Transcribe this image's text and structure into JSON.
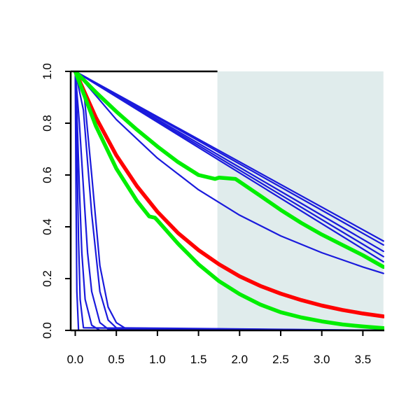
{
  "chart_data": {
    "type": "line",
    "title": "",
    "xlabel": "",
    "ylabel": "",
    "xlim": [
      -0.05,
      3.75
    ],
    "ylim": [
      0,
      1
    ],
    "x_ticks": [
      "0.0",
      "0.5",
      "1.0",
      "1.5",
      "2.0",
      "2.5",
      "3.0",
      "3.5"
    ],
    "y_ticks": [
      "0.0",
      "0.2",
      "0.4",
      "0.6",
      "0.8",
      "1.0"
    ],
    "grid": false,
    "shaded_region": {
      "x_from": 1.73,
      "x_to": 3.75,
      "color": "#e0ecec"
    },
    "series_colors": {
      "blue": "#1a1adc",
      "red": "#ff0000",
      "green": "#00ee00"
    },
    "series": [
      {
        "color": "blue",
        "x": [
          0,
          3.75
        ],
        "y": [
          1.0,
          0.345
        ]
      },
      {
        "color": "blue",
        "x": [
          0,
          3.75
        ],
        "y": [
          1.0,
          0.33
        ]
      },
      {
        "color": "blue",
        "x": [
          0,
          3.75
        ],
        "y": [
          1.0,
          0.305
        ]
      },
      {
        "color": "blue",
        "x": [
          0,
          3.75
        ],
        "y": [
          1.0,
          0.285
        ]
      },
      {
        "color": "blue",
        "x": [
          0,
          3.75
        ],
        "y": [
          1.0,
          0.265
        ]
      },
      {
        "color": "blue",
        "x": [
          0,
          0.5,
          1.0,
          1.5,
          2.0,
          2.5,
          3.0,
          3.5,
          3.75
        ],
        "y": [
          1.0,
          0.814,
          0.665,
          0.543,
          0.445,
          0.365,
          0.3,
          0.245,
          0.22
        ]
      },
      {
        "color": "blue",
        "x": [
          0,
          0.1,
          0.2,
          0.3,
          0.4,
          0.5,
          0.6,
          0.7,
          3.75
        ],
        "y": [
          1.0,
          0.94,
          0.6,
          0.25,
          0.09,
          0.03,
          0.01,
          0.0,
          0.0
        ]
      },
      {
        "color": "blue",
        "x": [
          0,
          0.1,
          0.2,
          0.3,
          0.4,
          0.5,
          3.75
        ],
        "y": [
          1.0,
          0.85,
          0.45,
          0.15,
          0.04,
          0.01,
          0.0
        ]
      },
      {
        "color": "blue",
        "x": [
          0,
          0.05,
          0.1,
          0.15,
          0.2,
          0.3,
          0.4,
          3.75
        ],
        "y": [
          1.0,
          0.8,
          0.55,
          0.3,
          0.15,
          0.03,
          0.005,
          0.0
        ]
      },
      {
        "color": "blue",
        "x": [
          0,
          0.02,
          0.05,
          0.08,
          0.12,
          0.2,
          0.3,
          3.75
        ],
        "y": [
          1.0,
          0.85,
          0.55,
          0.3,
          0.12,
          0.02,
          0.0,
          0.0
        ]
      },
      {
        "color": "blue",
        "x": [
          0,
          0.02,
          0.04,
          0.06,
          0.1,
          3.75
        ],
        "y": [
          1.0,
          0.7,
          0.35,
          0.12,
          0.01,
          0.0
        ]
      },
      {
        "color": "blue",
        "x": [
          0,
          0.01,
          0.02,
          0.04,
          3.75
        ],
        "y": [
          1.0,
          0.5,
          0.15,
          0.0,
          0.0
        ]
      },
      {
        "color": "red",
        "width": "thick",
        "x": [
          0,
          0.25,
          0.5,
          0.75,
          1.0,
          1.25,
          1.5,
          1.75,
          2.0,
          2.25,
          2.5,
          2.75,
          3.0,
          3.25,
          3.5,
          3.75
        ],
        "y": [
          1.0,
          0.823,
          0.676,
          0.557,
          0.458,
          0.376,
          0.31,
          0.255,
          0.209,
          0.172,
          0.142,
          0.117,
          0.096,
          0.079,
          0.065,
          0.054
        ]
      },
      {
        "color": "green",
        "width": "thick",
        "x": [
          0,
          0.25,
          0.5,
          0.75,
          1.0,
          1.25,
          1.5,
          1.7,
          1.75,
          1.95,
          2.25,
          2.5,
          2.75,
          3.0,
          3.25,
          3.5,
          3.75
        ],
        "y": [
          1.0,
          0.92,
          0.845,
          0.775,
          0.71,
          0.65,
          0.6,
          0.585,
          0.59,
          0.585,
          0.52,
          0.465,
          0.415,
          0.37,
          0.33,
          0.29,
          0.245
        ]
      },
      {
        "color": "green",
        "width": "thick",
        "x": [
          0,
          0.25,
          0.5,
          0.75,
          0.9,
          0.97,
          1.0,
          1.25,
          1.5,
          1.75,
          2.0,
          2.25,
          2.5,
          2.75,
          3.0,
          3.25,
          3.5,
          3.75
        ],
        "y": [
          1.0,
          0.79,
          0.625,
          0.5,
          0.44,
          0.435,
          0.425,
          0.335,
          0.255,
          0.19,
          0.14,
          0.1,
          0.07,
          0.05,
          0.035,
          0.023,
          0.015,
          0.009
        ]
      }
    ]
  }
}
